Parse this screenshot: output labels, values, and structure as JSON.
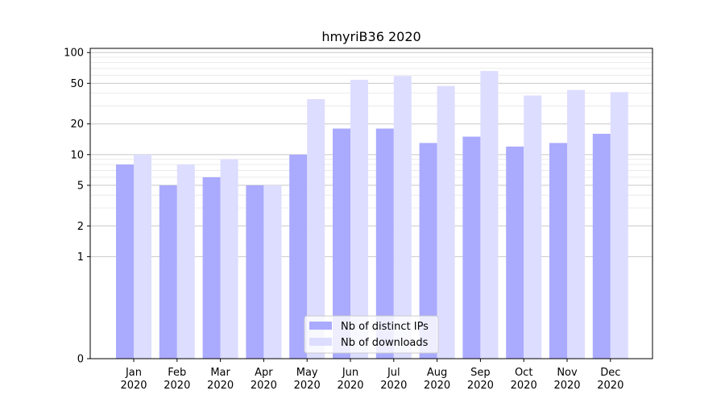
{
  "chart_data": {
    "type": "bar",
    "title": "hmyriB36 2020",
    "xlabel": "",
    "ylabel": "",
    "yscale": "symlog",
    "ylim": [
      0,
      110
    ],
    "yticks": [
      0,
      1,
      2,
      5,
      10,
      20,
      50,
      100
    ],
    "categories": [
      [
        "Jan",
        "2020"
      ],
      [
        "Feb",
        "2020"
      ],
      [
        "Mar",
        "2020"
      ],
      [
        "Apr",
        "2020"
      ],
      [
        "May",
        "2020"
      ],
      [
        "Jun",
        "2020"
      ],
      [
        "Jul",
        "2020"
      ],
      [
        "Aug",
        "2020"
      ],
      [
        "Sep",
        "2020"
      ],
      [
        "Oct",
        "2020"
      ],
      [
        "Nov",
        "2020"
      ],
      [
        "Dec",
        "2020"
      ]
    ],
    "series": [
      {
        "name": "Nb of distinct IPs",
        "color": "#aaaaff",
        "values": [
          8,
          5,
          6,
          5,
          10,
          18,
          18,
          13,
          15,
          12,
          13,
          16
        ]
      },
      {
        "name": "Nb of downloads",
        "color": "#ddddff",
        "values": [
          10,
          8,
          9,
          5,
          35,
          54,
          59,
          47,
          66,
          38,
          43,
          41
        ]
      }
    ],
    "grid": true,
    "legend_position": "bottom-center"
  }
}
